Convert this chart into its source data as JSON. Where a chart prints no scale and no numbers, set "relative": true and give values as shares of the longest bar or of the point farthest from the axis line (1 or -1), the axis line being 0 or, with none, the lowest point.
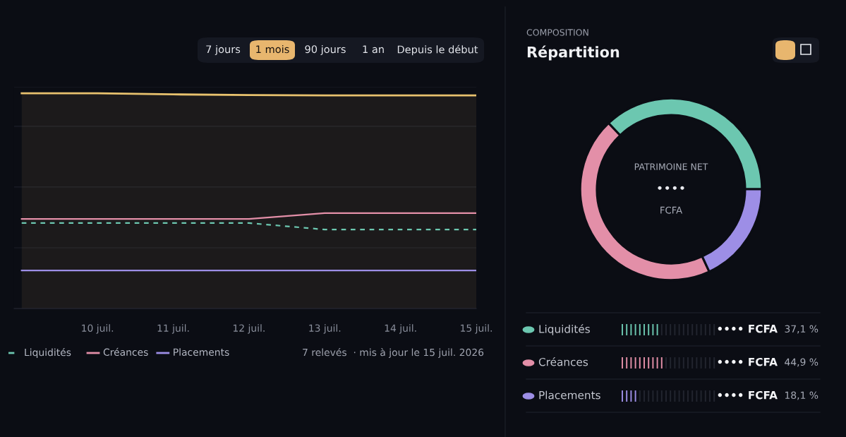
{
  "chart_data": [
    {
      "type": "line",
      "relative": true,
      "grid": "y",
      "legend": "bottom left",
      "categories": [
        null,
        "10 juil.",
        "11 juil.",
        "12 juil.",
        "13 juil.",
        "14 juil.",
        "15 juil."
      ],
      "series": [
        {
          "type": "area",
          "color": "#e8c26e",
          "values": [
            1,
            1,
            0.995,
            0.992,
            0.99,
            0.99,
            0.99
          ]
        },
        {
          "name": "Liquidités",
          "color": "#6cc7b0",
          "line_style": "dashed",
          "values": [
            0.397,
            0.397,
            0.397,
            0.397,
            0.367,
            0.367,
            0.367
          ]
        },
        {
          "name": "Créances",
          "color": "#e38fa8",
          "values": [
            0.416,
            0.416,
            0.416,
            0.416,
            0.443,
            0.443,
            0.443
          ]
        },
        {
          "name": "Placements",
          "color": "#9d8ee6",
          "values": [
            0.177,
            0.177,
            0.177,
            0.177,
            0.177,
            0.177,
            0.177
          ]
        }
      ],
      "annotations": [
        "7 jours",
        "1 mois",
        "90 jours",
        "1 an",
        "Depuis le début",
        "7 relevés  · mis à jour le 15 juil. 2026"
      ]
    },
    {
      "type": "donut",
      "title": "Répartition",
      "subtitle": "COMPOSITION",
      "legend": "bottom",
      "categories": [
        "Liquidités",
        "Créances",
        "Placements"
      ],
      "values": [
        37.1,
        44.9,
        18.1
      ],
      "colors": [
        "#6cc7b0",
        "#e38fa8",
        "#9d8ee6"
      ],
      "value_labels": [
        "37,1 %",
        "44,9 %",
        "18,1 %"
      ],
      "annotations": [
        "PATRIMOINE NET",
        "••••",
        "FCFA",
        "•••• FCFA",
        "•••• FCFA",
        "•••• FCFA"
      ]
    }
  ]
}
